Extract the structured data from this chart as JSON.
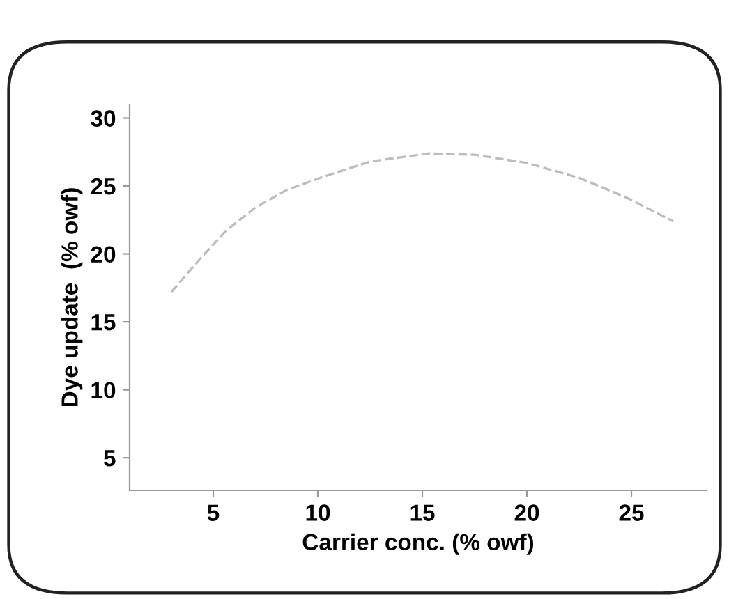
{
  "chart_data": {
    "type": "line",
    "xlabel": "Carrier conc. (% owf)",
    "ylabel": "Dye update  (% owf)",
    "x": [
      3,
      4,
      5.6,
      7,
      8.5,
      10.3,
      12.5,
      15.3,
      17.5,
      20,
      22.5,
      24.7,
      27
    ],
    "series": [
      {
        "color": "#bdbdbd",
        "values": [
          17.2,
          19,
          21.7,
          23.4,
          24.7,
          25.7,
          26.8,
          27.4,
          27.3,
          26.7,
          25.6,
          24.2,
          22.4
        ]
      }
    ],
    "xlim": [
      1,
      28.6
    ],
    "ylim": [
      2.6,
      31
    ],
    "xticks": [
      5,
      10,
      15,
      20,
      25
    ],
    "yticks": [
      5,
      10,
      15,
      20,
      25,
      30
    ],
    "grid": false,
    "legend": false,
    "marker": "none",
    "line_style": "dashed"
  }
}
